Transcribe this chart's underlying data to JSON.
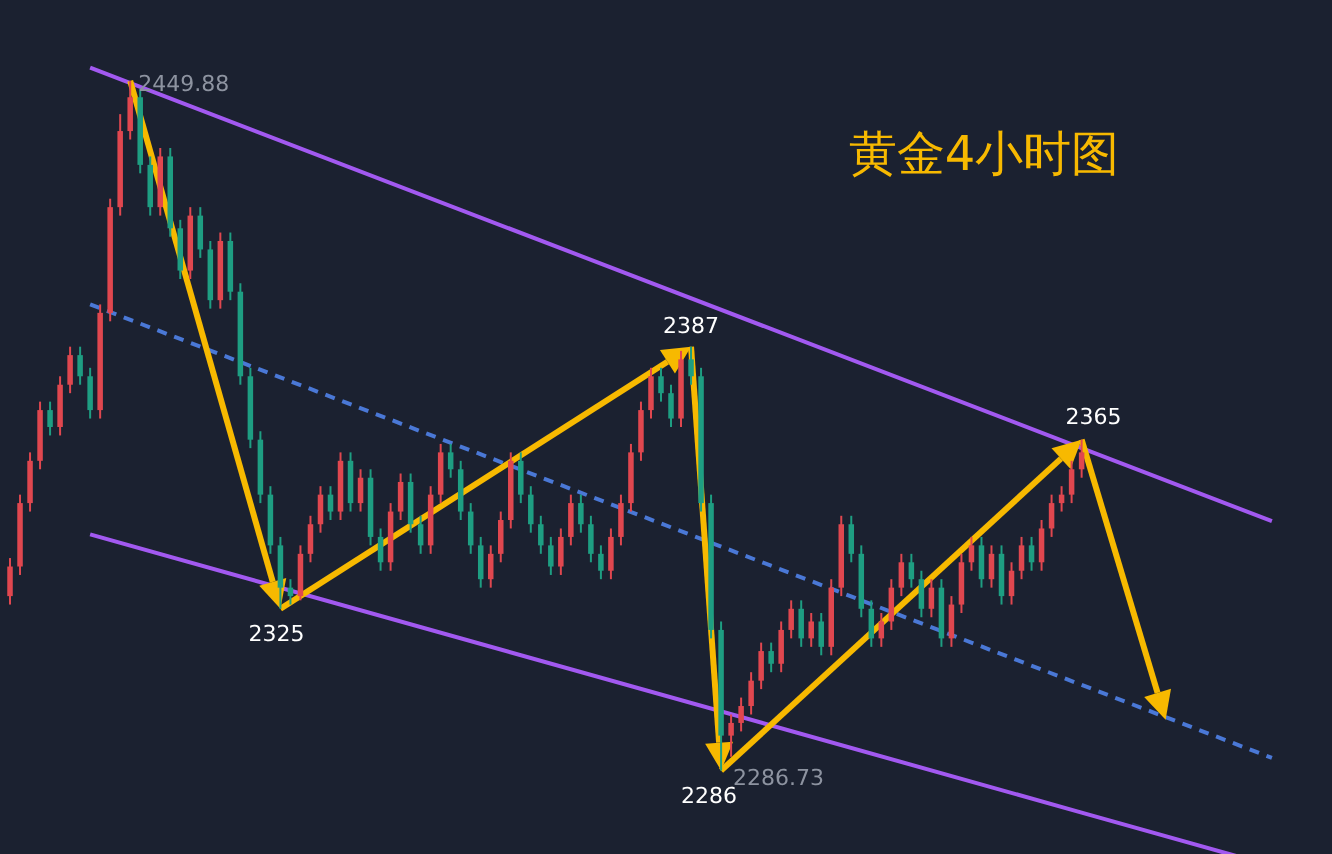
{
  "chart_data": {
    "type": "candlestick",
    "title": "黄金4小时图",
    "ylim": [
      2267,
      2469
    ],
    "colors": [
      "#e0474f",
      "#e0474f",
      "#e0474f",
      "#e0474f",
      "#1e9e82",
      "#e0474f",
      "#e0474f",
      "#1e9e82",
      "#1e9e82",
      "#e0474f",
      "#e0474f",
      "#e0474f",
      "#e0474f",
      "#1e9e82",
      "#1e9e82",
      "#e0474f",
      "#1e9e82",
      "#1e9e82",
      "#e0474f",
      "#1e9e82",
      "#1e9e82",
      "#e0474f",
      "#1e9e82",
      "#1e9e82",
      "#1e9e82",
      "#1e9e82",
      "#1e9e82",
      "#1e9e82",
      "#1e9e82",
      "#e0474f",
      "#e0474f",
      "#e0474f",
      "#1e9e82",
      "#e0474f",
      "#1e9e82",
      "#e0474f",
      "#1e9e82",
      "#1e9e82",
      "#e0474f",
      "#e0474f",
      "#1e9e82",
      "#1e9e82",
      "#e0474f",
      "#e0474f",
      "#1e9e82",
      "#1e9e82",
      "#1e9e82",
      "#1e9e82",
      "#e0474f",
      "#e0474f",
      "#e0474f",
      "#1e9e82",
      "#1e9e82",
      "#1e9e82",
      "#1e9e82",
      "#e0474f",
      "#e0474f",
      "#1e9e82",
      "#1e9e82",
      "#1e9e82",
      "#e0474f",
      "#e0474f",
      "#e0474f",
      "#e0474f",
      "#e0474f",
      "#1e9e82",
      "#1e9e82",
      "#e0474f",
      "#1e9e82",
      "#1e9e82",
      "#1e9e82",
      "#1e9e82",
      "#e0474f",
      "#e0474f",
      "#e0474f",
      "#e0474f",
      "#1e9e82",
      "#e0474f",
      "#e0474f",
      "#1e9e82",
      "#e0474f",
      "#1e9e82",
      "#e0474f",
      "#e0474f",
      "#1e9e82",
      "#1e9e82",
      "#1e9e82",
      "#e0474f",
      "#e0474f",
      "#e0474f",
      "#1e9e82",
      "#1e9e82",
      "#e0474f",
      "#1e9e82",
      "#e0474f",
      "#e0474f",
      "#e0474f",
      "#1e9e82",
      "#e0474f",
      "#1e9e82",
      "#e0474f",
      "#e0474f",
      "#1e9e82",
      "#e0474f",
      "#e0474f",
      "#e0474f",
      "#e0474f",
      "#e0474f"
    ],
    "categories": [
      null,
      null,
      null,
      null,
      null,
      null,
      null,
      null,
      null,
      null,
      null,
      null,
      null,
      null,
      null,
      null,
      null,
      null,
      null,
      null,
      null,
      null,
      null,
      null,
      null,
      null,
      null,
      null,
      null,
      null,
      null,
      null,
      null,
      null,
      null,
      null,
      null,
      null,
      null,
      null,
      null,
      null,
      null,
      null,
      null,
      null,
      null,
      null,
      null,
      null,
      null,
      null,
      null,
      null,
      null,
      null,
      null,
      null,
      null,
      null,
      null,
      null,
      null,
      null,
      null,
      null,
      null,
      null,
      null,
      null,
      null,
      null,
      null,
      null,
      null,
      null,
      null,
      null,
      null,
      null,
      null,
      null,
      null,
      null,
      null,
      null,
      null,
      null,
      null,
      null,
      null,
      null,
      null,
      null,
      null,
      null,
      null,
      null,
      null,
      null,
      null,
      null,
      null,
      null,
      null,
      null,
      null,
      null
    ],
    "ohlc": [
      [
        2328,
        2337,
        2326,
        2335
      ],
      [
        2335,
        2352,
        2333,
        2350
      ],
      [
        2350,
        2362,
        2348,
        2360
      ],
      [
        2360,
        2374,
        2358,
        2372
      ],
      [
        2372,
        2374,
        2366,
        2368
      ],
      [
        2368,
        2380,
        2366,
        2378
      ],
      [
        2378,
        2387,
        2376,
        2385
      ],
      [
        2385,
        2387,
        2378,
        2380
      ],
      [
        2380,
        2382,
        2370,
        2372
      ],
      [
        2372,
        2397,
        2370,
        2395
      ],
      [
        2395,
        2422,
        2393,
        2420
      ],
      [
        2420,
        2442,
        2418,
        2438
      ],
      [
        2438,
        2449.88,
        2436,
        2446
      ],
      [
        2446,
        2448,
        2428,
        2430
      ],
      [
        2430,
        2432,
        2418,
        2420
      ],
      [
        2420,
        2434,
        2418,
        2432
      ],
      [
        2432,
        2434,
        2413,
        2415
      ],
      [
        2415,
        2417,
        2403,
        2405
      ],
      [
        2405,
        2420,
        2403,
        2418
      ],
      [
        2418,
        2420,
        2408,
        2410
      ],
      [
        2410,
        2412,
        2396,
        2398
      ],
      [
        2398,
        2414,
        2396,
        2412
      ],
      [
        2412,
        2414,
        2398,
        2400
      ],
      [
        2400,
        2402,
        2378,
        2380
      ],
      [
        2380,
        2382,
        2363,
        2365
      ],
      [
        2365,
        2367,
        2350,
        2352
      ],
      [
        2352,
        2354,
        2338,
        2340
      ],
      [
        2340,
        2342,
        2325,
        2330
      ],
      [
        2330,
        2332,
        2326,
        2328
      ],
      [
        2328,
        2340,
        2327,
        2338
      ],
      [
        2338,
        2347,
        2336,
        2345
      ],
      [
        2345,
        2354,
        2343,
        2352
      ],
      [
        2352,
        2354,
        2346,
        2348
      ],
      [
        2348,
        2362,
        2346,
        2360
      ],
      [
        2360,
        2362,
        2348,
        2350
      ],
      [
        2350,
        2358,
        2348,
        2356
      ],
      [
        2356,
        2358,
        2340,
        2342
      ],
      [
        2342,
        2344,
        2334,
        2336
      ],
      [
        2336,
        2350,
        2334,
        2348
      ],
      [
        2348,
        2357,
        2346,
        2355
      ],
      [
        2355,
        2357,
        2343,
        2345
      ],
      [
        2345,
        2347,
        2338,
        2340
      ],
      [
        2340,
        2354,
        2338,
        2352
      ],
      [
        2352,
        2364,
        2350,
        2362
      ],
      [
        2362,
        2364,
        2356,
        2358
      ],
      [
        2358,
        2360,
        2346,
        2348
      ],
      [
        2348,
        2350,
        2338,
        2340
      ],
      [
        2340,
        2342,
        2330,
        2332
      ],
      [
        2332,
        2340,
        2330,
        2338
      ],
      [
        2338,
        2348,
        2336,
        2346
      ],
      [
        2346,
        2362,
        2344,
        2360
      ],
      [
        2360,
        2362,
        2350,
        2352
      ],
      [
        2352,
        2354,
        2343,
        2345
      ],
      [
        2345,
        2347,
        2338,
        2340
      ],
      [
        2340,
        2342,
        2333,
        2335
      ],
      [
        2335,
        2344,
        2333,
        2342
      ],
      [
        2342,
        2352,
        2340,
        2350
      ],
      [
        2350,
        2352,
        2343,
        2345
      ],
      [
        2345,
        2347,
        2336,
        2338
      ],
      [
        2338,
        2340,
        2332,
        2334
      ],
      [
        2334,
        2344,
        2332,
        2342
      ],
      [
        2342,
        2352,
        2340,
        2350
      ],
      [
        2350,
        2364,
        2348,
        2362
      ],
      [
        2362,
        2374,
        2360,
        2372
      ],
      [
        2372,
        2382,
        2370,
        2380
      ],
      [
        2380,
        2382,
        2374,
        2376
      ],
      [
        2376,
        2378,
        2368,
        2370
      ],
      [
        2370,
        2386,
        2368,
        2384
      ],
      [
        2384,
        2387,
        2378,
        2380
      ],
      [
        2380,
        2382,
        2348,
        2350
      ],
      [
        2350,
        2352,
        2318,
        2320
      ],
      [
        2320,
        2322,
        2286.73,
        2295
      ],
      [
        2295,
        2300,
        2290,
        2298
      ],
      [
        2298,
        2304,
        2296,
        2302
      ],
      [
        2302,
        2310,
        2300,
        2308
      ],
      [
        2308,
        2317,
        2306,
        2315
      ],
      [
        2315,
        2317,
        2310,
        2312
      ],
      [
        2312,
        2322,
        2310,
        2320
      ],
      [
        2320,
        2327,
        2318,
        2325
      ],
      [
        2325,
        2327,
        2316,
        2318
      ],
      [
        2318,
        2324,
        2316,
        2322
      ],
      [
        2322,
        2324,
        2314,
        2316
      ],
      [
        2316,
        2332,
        2314,
        2330
      ],
      [
        2330,
        2347,
        2328,
        2345
      ],
      [
        2345,
        2347,
        2336,
        2338
      ],
      [
        2338,
        2340,
        2323,
        2325
      ],
      [
        2325,
        2327,
        2316,
        2318
      ],
      [
        2318,
        2324,
        2316,
        2322
      ],
      [
        2322,
        2332,
        2320,
        2330
      ],
      [
        2330,
        2338,
        2328,
        2336
      ],
      [
        2336,
        2338,
        2330,
        2332
      ],
      [
        2332,
        2334,
        2323,
        2325
      ],
      [
        2325,
        2332,
        2323,
        2330
      ],
      [
        2330,
        2332,
        2316,
        2318
      ],
      [
        2318,
        2328,
        2316,
        2326
      ],
      [
        2326,
        2338,
        2324,
        2336
      ],
      [
        2336,
        2342,
        2334,
        2340
      ],
      [
        2340,
        2342,
        2330,
        2332
      ],
      [
        2332,
        2340,
        2330,
        2338
      ],
      [
        2338,
        2340,
        2326,
        2328
      ],
      [
        2328,
        2336,
        2326,
        2334
      ],
      [
        2334,
        2342,
        2332,
        2340
      ],
      [
        2340,
        2342,
        2334,
        2336
      ],
      [
        2336,
        2346,
        2334,
        2344
      ],
      [
        2344,
        2352,
        2342,
        2350
      ],
      [
        2350,
        2354,
        2348,
        2352
      ],
      [
        2352,
        2360,
        2350,
        2358
      ],
      [
        2358,
        2365,
        2356,
        2362
      ]
    ],
    "series": [
      {
        "type": "line",
        "values": [
          null,
          null,
          null,
          null,
          null,
          null,
          null,
          null,
          2453,
          null,
          null,
          null,
          null,
          null,
          null,
          null,
          null,
          null,
          null,
          null,
          null,
          null,
          null,
          null,
          null,
          null,
          null,
          null,
          null,
          null,
          null,
          null,
          null,
          null,
          null,
          null,
          null,
          null,
          null,
          null,
          null,
          null,
          null,
          null,
          null,
          null,
          null,
          null,
          null,
          null,
          null,
          null,
          null,
          null,
          null,
          null,
          null,
          null,
          null,
          null,
          null,
          null,
          null,
          null,
          null,
          null,
          null,
          null,
          null,
          null,
          null,
          null,
          null,
          null,
          null,
          null,
          null,
          null,
          null,
          null,
          null,
          null,
          null,
          null,
          null,
          null,
          null,
          null,
          null,
          null,
          null,
          null,
          null,
          null,
          null,
          null,
          null,
          null,
          null,
          null,
          null,
          null,
          null,
          null,
          null,
          null,
          null,
          2363
        ],
        "color": "#a259f0",
        "line_style": "solid"
      },
      {
        "type": "line",
        "values": [
          null,
          null,
          null,
          null,
          null,
          null,
          null,
          null,
          2397,
          null,
          null,
          null,
          null,
          null,
          null,
          null,
          null,
          null,
          null,
          null,
          null,
          null,
          null,
          null,
          null,
          null,
          null,
          null,
          null,
          null,
          null,
          null,
          null,
          null,
          null,
          null,
          null,
          null,
          null,
          null,
          null,
          null,
          null,
          null,
          null,
          null,
          null,
          null,
          null,
          null,
          null,
          null,
          null,
          null,
          null,
          null,
          null,
          null,
          null,
          null,
          null,
          null,
          null,
          null,
          null,
          null,
          null,
          null,
          null,
          null,
          null,
          null,
          null,
          null,
          null,
          null,
          null,
          null,
          null,
          null,
          null,
          null,
          null,
          null,
          null,
          null,
          null,
          null,
          null,
          null,
          null,
          null,
          null,
          null,
          null,
          null,
          null,
          null,
          null,
          null,
          null,
          null,
          null,
          null,
          null,
          null,
          null,
          2307
        ],
        "color": "#4a78d6",
        "line_style": "dashed"
      },
      {
        "type": "line",
        "values": [
          null,
          null,
          null,
          null,
          null,
          null,
          null,
          null,
          2342.6,
          null,
          null,
          null,
          null,
          null,
          null,
          null,
          null,
          null,
          null,
          null,
          null,
          null,
          null,
          null,
          null,
          null,
          null,
          null,
          null,
          null,
          null,
          null,
          null,
          null,
          null,
          null,
          null,
          null,
          null,
          null,
          null,
          null,
          null,
          null,
          null,
          null,
          null,
          null,
          null,
          null,
          null,
          null,
          null,
          null,
          null,
          null,
          null,
          null,
          null,
          null,
          null,
          null,
          null,
          null,
          null,
          null,
          null,
          null,
          null,
          null,
          null,
          null,
          null,
          null,
          null,
          null,
          null,
          null,
          null,
          null,
          null,
          null,
          null,
          null,
          null,
          null,
          null,
          null,
          null,
          null,
          null,
          null,
          null,
          null,
          null,
          null,
          null,
          null,
          null,
          null,
          null,
          null,
          null,
          null,
          null,
          null,
          null,
          2276.8
        ],
        "color": "#a259f0",
        "line_style": "solid"
      }
    ],
    "annotations": [
      "2449.88",
      "2325",
      "2387",
      "2286",
      "2286.73",
      "2365"
    ]
  }
}
